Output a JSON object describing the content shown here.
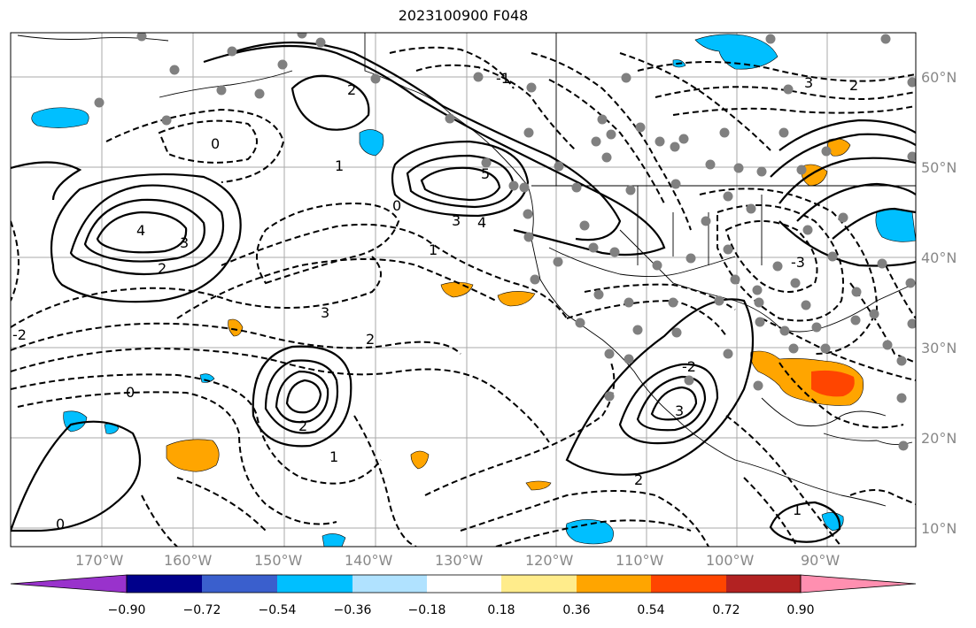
{
  "title": "2023100900 F048",
  "map": {
    "lon_labels": [
      "170°W",
      "160°W",
      "150°W",
      "140°W",
      "130°W",
      "120°W",
      "110°W",
      "100°W",
      "90°W"
    ],
    "lat_labels": [
      "60°N",
      "50°N",
      "40°N",
      "30°N",
      "20°N",
      "10°N"
    ],
    "grid_color": "#aaaaaa",
    "contour_labels": [
      "0",
      "1",
      "2",
      "3",
      "4",
      "5",
      "0",
      "1",
      "2",
      "3",
      "4",
      "0",
      "2",
      "3",
      "1",
      "0",
      "2",
      "3",
      "2",
      "-2",
      "-3",
      "-1",
      "-2",
      "3",
      "1",
      "2"
    ]
  },
  "colorbar": {
    "ticks": [
      "−0.90",
      "−0.72",
      "−0.54",
      "−0.36",
      "−0.18",
      "0.18",
      "0.36",
      "0.54",
      "0.72",
      "0.90"
    ],
    "colors": [
      "#9932cc",
      "#00008b",
      "#3a5fcd",
      "#00bfff",
      "#b0e2ff",
      "#ffffff",
      "#ffec8b",
      "#ffa500",
      "#ff4500",
      "#b22222",
      "#ff8fb0"
    ]
  }
}
